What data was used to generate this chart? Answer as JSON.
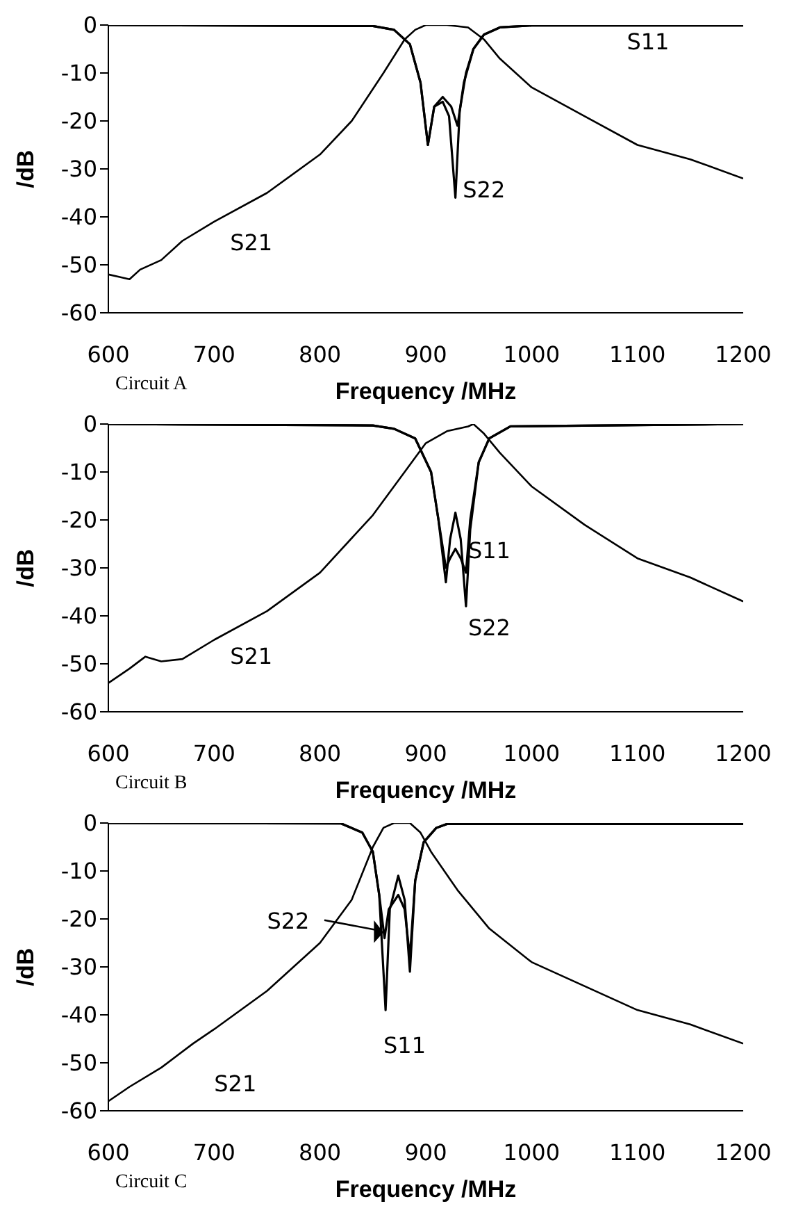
{
  "chart_data": [
    {
      "type": "line",
      "xlabel": "Frequency /MHz",
      "ylabel": "/dB",
      "annotations": [
        "Circuit A"
      ],
      "xlim": [
        600,
        1200
      ],
      "xticks": [
        600,
        700,
        800,
        900,
        1000,
        1100,
        1200
      ],
      "ylim": [
        -60,
        0
      ],
      "yticks": [
        -60,
        -50,
        -40,
        -30,
        -20,
        -10,
        0
      ],
      "grid": false,
      "marker": "none",
      "line_style": "solid",
      "series": [
        {
          "name": "S11",
          "color": "#000000",
          "x": [
            600,
            850,
            870,
            885,
            895,
            902,
            908,
            916,
            924,
            930,
            936,
            945,
            955,
            970,
            1000,
            1200
          ],
          "values": [
            0,
            -0.2,
            -1,
            -4,
            -12,
            -25,
            -17,
            -15,
            -17,
            -21,
            -12,
            -5,
            -2,
            -0.5,
            -0.1,
            -0.1
          ]
        },
        {
          "name": "S21",
          "color": "#000000",
          "x": [
            600,
            610,
            620,
            630,
            650,
            670,
            700,
            750,
            800,
            830,
            860,
            880,
            890,
            900,
            920,
            940,
            955,
            970,
            1000,
            1050,
            1100,
            1150,
            1200
          ],
          "values": [
            -52,
            -52.5,
            -53,
            -51,
            -49,
            -45,
            -41,
            -35,
            -27,
            -20,
            -10,
            -3,
            -1,
            0,
            0,
            -0.5,
            -3,
            -7,
            -13,
            -19,
            -25,
            -28,
            -32
          ]
        },
        {
          "name": "S22",
          "color": "#000000",
          "x": [
            600,
            850,
            870,
            885,
            895,
            902,
            908,
            916,
            922,
            928,
            932,
            938,
            945,
            955,
            970,
            1000,
            1200
          ],
          "values": [
            0,
            -0.2,
            -1,
            -4,
            -12,
            -25,
            -17,
            -16,
            -19,
            -36,
            -18,
            -10,
            -5,
            -2,
            -0.5,
            -0.1,
            -0.1
          ]
        }
      ]
    },
    {
      "type": "line",
      "xlabel": "Frequency /MHz",
      "ylabel": "/dB",
      "annotations": [
        "Circuit B"
      ],
      "xlim": [
        600,
        1200
      ],
      "xticks": [
        600,
        700,
        800,
        900,
        1000,
        1100,
        1200
      ],
      "ylim": [
        -60,
        0
      ],
      "yticks": [
        -60,
        -50,
        -40,
        -30,
        -20,
        -10,
        0
      ],
      "grid": false,
      "marker": "none",
      "line_style": "solid",
      "series": [
        {
          "name": "S11",
          "color": "#000000",
          "x": [
            600,
            850,
            870,
            890,
            905,
            912,
            919,
            923,
            928,
            933,
            938,
            942,
            950,
            960,
            980,
            1200
          ],
          "values": [
            0,
            -0.3,
            -1,
            -3,
            -10,
            -20,
            -30,
            -28,
            -26,
            -28,
            -31,
            -20,
            -8,
            -3,
            -0.5,
            0
          ]
        },
        {
          "name": "S21",
          "color": "#000000",
          "x": [
            600,
            620,
            635,
            650,
            670,
            700,
            750,
            800,
            850,
            880,
            900,
            920,
            940,
            945,
            955,
            970,
            1000,
            1050,
            1100,
            1150,
            1200
          ],
          "values": [
            -54,
            -51,
            -48.5,
            -49.5,
            -49,
            -45,
            -39,
            -31,
            -19,
            -10,
            -4,
            -1.5,
            -0.5,
            0,
            -2,
            -6,
            -13,
            -21,
            -28,
            -32,
            -37
          ]
        },
        {
          "name": "S22",
          "color": "#000000",
          "x": [
            600,
            850,
            870,
            890,
            905,
            912,
            919,
            923,
            928,
            933,
            938,
            942,
            950,
            960,
            980,
            1200
          ],
          "values": [
            0,
            -0.3,
            -1,
            -3,
            -10,
            -20,
            -33,
            -24,
            -18.5,
            -24,
            -38,
            -22,
            -8,
            -3,
            -0.5,
            0
          ]
        }
      ]
    },
    {
      "type": "line",
      "xlabel": "Frequency /MHz",
      "ylabel": "/dB",
      "annotations": [
        "Circuit C"
      ],
      "xlim": [
        600,
        1200
      ],
      "xticks": [
        600,
        700,
        800,
        900,
        1000,
        1100,
        1200
      ],
      "ylim": [
        -60,
        0
      ],
      "yticks": [
        -60,
        -50,
        -40,
        -30,
        -20,
        -10,
        0
      ],
      "grid": false,
      "marker": "none",
      "line_style": "solid",
      "series": [
        {
          "name": "S11",
          "color": "#000000",
          "x": [
            600,
            820,
            840,
            850,
            856,
            862,
            866,
            874,
            880,
            885,
            890,
            898,
            910,
            920,
            1200
          ],
          "values": [
            0,
            -0.1,
            -2,
            -6,
            -15,
            -39,
            -18,
            -11,
            -16,
            -31,
            -12,
            -4,
            -1,
            -0.2,
            -0.2
          ]
        },
        {
          "name": "S21",
          "color": "#000000",
          "x": [
            600,
            620,
            650,
            680,
            700,
            750,
            800,
            830,
            850,
            860,
            870,
            885,
            895,
            905,
            930,
            960,
            1000,
            1050,
            1100,
            1150,
            1200
          ],
          "values": [
            -58,
            -55,
            -51,
            -46,
            -43,
            -35,
            -25,
            -16,
            -5,
            -1,
            0,
            0,
            -2,
            -6,
            -14,
            -22,
            -29,
            -34,
            -39,
            -42,
            -46
          ]
        },
        {
          "name": "S22",
          "color": "#000000",
          "x": [
            600,
            820,
            840,
            850,
            856,
            861,
            865,
            874,
            880,
            885,
            890,
            898,
            910,
            920,
            1200
          ],
          "values": [
            0,
            -0.1,
            -2,
            -6,
            -15,
            -24,
            -18,
            -15,
            -18,
            -28,
            -12,
            -4,
            -1,
            -0.2,
            -0.2
          ]
        }
      ]
    }
  ]
}
